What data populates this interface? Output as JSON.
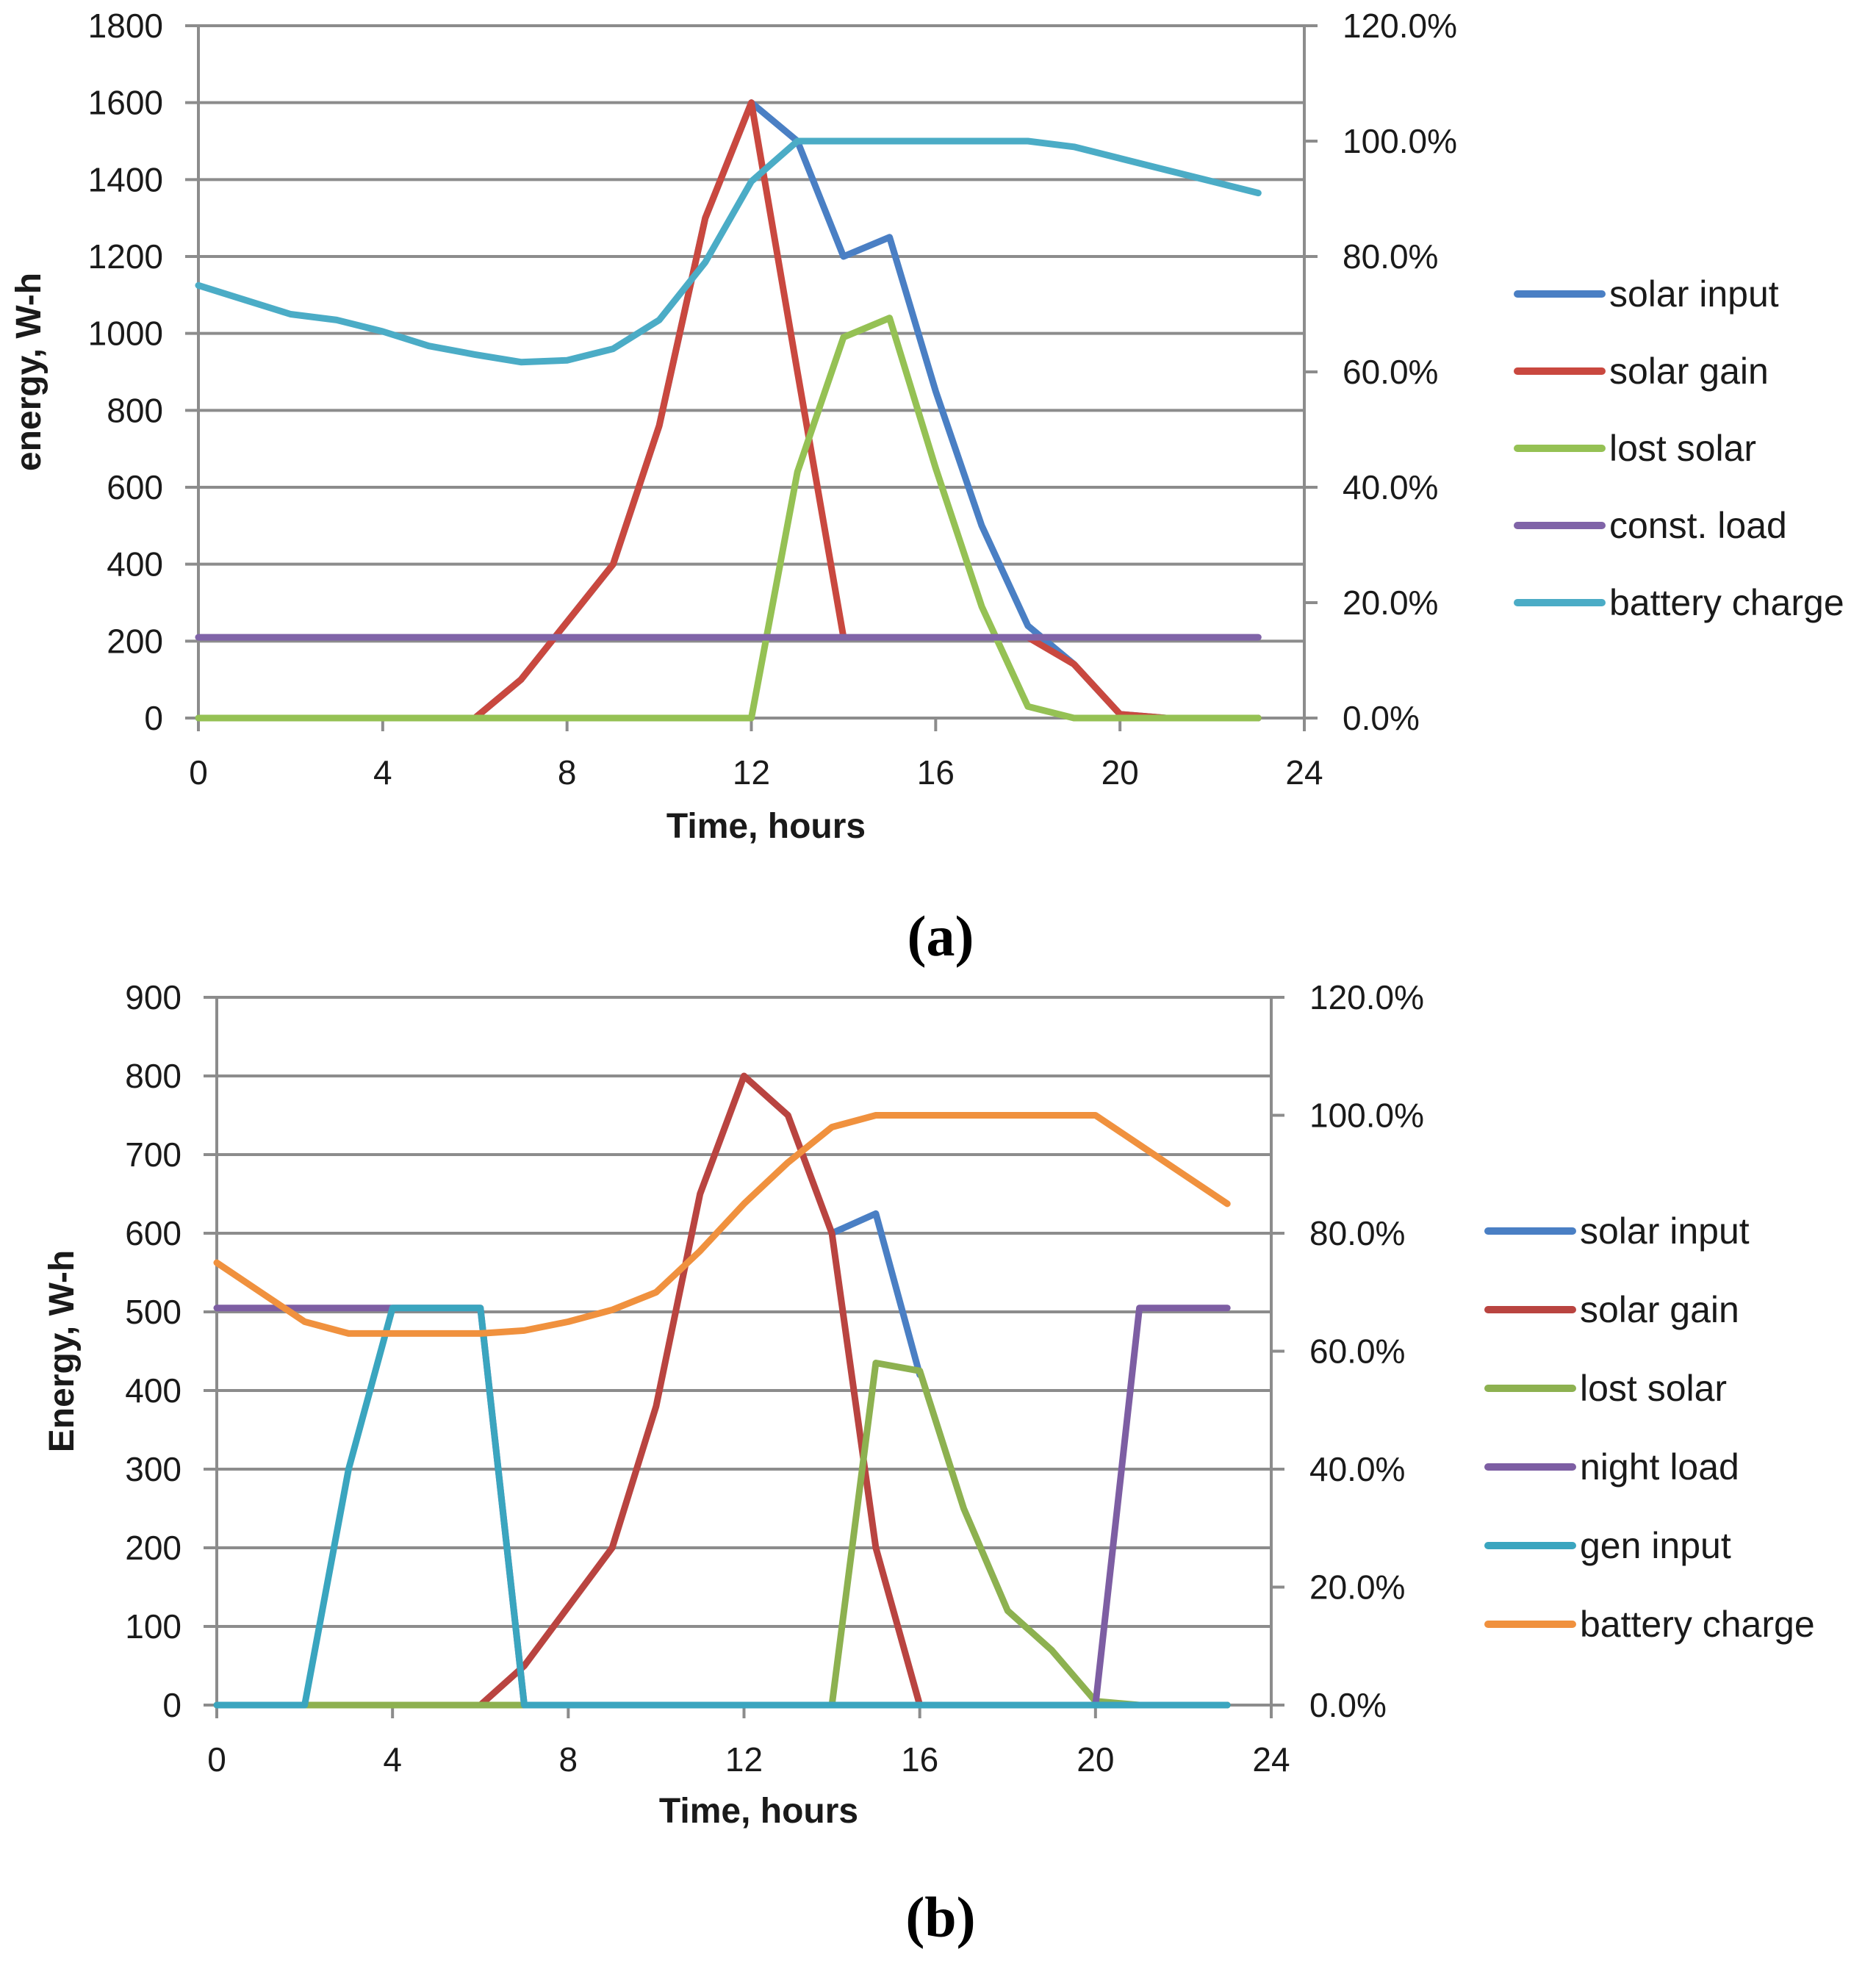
{
  "chart_data": [
    {
      "type": "line",
      "panel_label": "(a)",
      "xlabel": "Time, hours",
      "ylabel": "energy, W-h",
      "xlim": [
        0,
        24
      ],
      "ylim": [
        0,
        1800
      ],
      "y2lim": [
        0,
        1.2
      ],
      "x_ticks": [
        "0",
        "4",
        "8",
        "12",
        "16",
        "20",
        "24"
      ],
      "y_ticks": [
        "0",
        "200",
        "400",
        "600",
        "800",
        "1000",
        "1200",
        "1400",
        "1600",
        "1800"
      ],
      "y2_ticks": [
        "0.0%",
        "20.0%",
        "40.0%",
        "60.0%",
        "80.0%",
        "100.0%",
        "120.0%"
      ],
      "grid": true,
      "legend_position": "right",
      "series": [
        {
          "name": "solar input",
          "axis": "left",
          "color": "#4a7fc4",
          "x": [
            0,
            1,
            2,
            3,
            4,
            5,
            6,
            7,
            8,
            9,
            10,
            11,
            12,
            13,
            14,
            15,
            16,
            17,
            18,
            19,
            20,
            21,
            22,
            23
          ],
          "y": [
            0,
            0,
            0,
            0,
            0,
            0,
            0,
            100,
            250,
            400,
            760,
            1300,
            1600,
            1500,
            1200,
            1250,
            850,
            500,
            240,
            140,
            10,
            0,
            0,
            0
          ]
        },
        {
          "name": "solar gain",
          "axis": "left",
          "color": "#c9483f",
          "x": [
            6,
            7,
            8,
            9,
            10,
            11,
            12,
            13,
            14
          ],
          "y": [
            0,
            100,
            250,
            400,
            760,
            1300,
            1600,
            900,
            210
          ]
        },
        {
          "name": "solar gain",
          "axis": "left",
          "color": "#c9483f",
          "x": [
            18,
            19,
            20,
            21,
            22,
            23
          ],
          "y": [
            210,
            140,
            10,
            0,
            0,
            0
          ]
        },
        {
          "name": "lost solar",
          "axis": "left",
          "color": "#95c154",
          "x": [
            0,
            1,
            2,
            3,
            4,
            5,
            6,
            7,
            8,
            9,
            10,
            11,
            12,
            13,
            14,
            15,
            16,
            17,
            18,
            19,
            20,
            21,
            22,
            23
          ],
          "y": [
            0,
            0,
            0,
            0,
            0,
            0,
            0,
            0,
            0,
            0,
            0,
            0,
            0,
            640,
            990,
            1040,
            650,
            290,
            30,
            0,
            0,
            0,
            0,
            0
          ]
        },
        {
          "name": "const. load",
          "axis": "left",
          "color": "#8064a8",
          "x": [
            0,
            23
          ],
          "y": [
            210,
            210
          ]
        },
        {
          "name": "battery charge",
          "axis": "right",
          "color": "#4bacc6",
          "x": [
            0,
            1,
            2,
            3,
            4,
            5,
            6,
            7,
            8,
            9,
            10,
            11,
            12,
            13,
            14,
            15,
            16,
            17,
            18,
            19,
            20,
            21,
            22,
            23
          ],
          "y": [
            0.75,
            0.725,
            0.7,
            0.69,
            0.67,
            0.645,
            0.63,
            0.617,
            0.62,
            0.64,
            0.69,
            0.79,
            0.93,
            1.0,
            1.0,
            1.0,
            1.0,
            1.0,
            1.0,
            0.99,
            0.97,
            0.95,
            0.93,
            0.91
          ]
        }
      ],
      "legend": [
        "solar input",
        "solar gain",
        "lost solar",
        "const. load",
        "battery charge"
      ],
      "legend_colors": [
        "#4a7fc4",
        "#c9483f",
        "#95c154",
        "#8064a8",
        "#4bacc6"
      ]
    },
    {
      "type": "line",
      "panel_label": "(b)",
      "xlabel": "Time, hours",
      "ylabel": "Energy, W-h",
      "xlim": [
        0,
        24
      ],
      "ylim": [
        0,
        900
      ],
      "y2lim": [
        0,
        1.2
      ],
      "x_ticks": [
        "0",
        "4",
        "8",
        "12",
        "16",
        "20",
        "24"
      ],
      "y_ticks": [
        "0",
        "100",
        "200",
        "300",
        "400",
        "500",
        "600",
        "700",
        "800",
        "900"
      ],
      "y2_ticks": [
        "0.0%",
        "20.0%",
        "40.0%",
        "60.0%",
        "80.0%",
        "100.0%",
        "120.0%"
      ],
      "grid": true,
      "legend_position": "right",
      "series": [
        {
          "name": "solar input",
          "axis": "left",
          "color": "#4a7fc4",
          "x": [
            14,
            15,
            16
          ],
          "y": [
            600,
            625,
            420
          ]
        },
        {
          "name": "solar gain",
          "axis": "left",
          "color": "#b94440",
          "x": [
            0,
            1,
            2,
            3,
            4,
            5,
            6,
            7,
            8,
            9,
            10,
            11,
            12,
            13,
            14,
            15,
            16,
            17,
            18,
            19,
            20,
            21,
            22,
            23
          ],
          "y": [
            0,
            0,
            0,
            0,
            0,
            0,
            0,
            50,
            125,
            200,
            380,
            650,
            800,
            750,
            600,
            200,
            0,
            0,
            0,
            0,
            0,
            0,
            0,
            0
          ]
        },
        {
          "name": "lost solar",
          "axis": "left",
          "color": "#8db150",
          "x": [
            0,
            1,
            2,
            3,
            4,
            5,
            6,
            7,
            8,
            9,
            10,
            11,
            12,
            13,
            14,
            15,
            16,
            17,
            18,
            19,
            20,
            21,
            22,
            23
          ],
          "y": [
            0,
            0,
            0,
            0,
            0,
            0,
            0,
            0,
            0,
            0,
            0,
            0,
            0,
            0,
            0,
            435,
            425,
            250,
            120,
            70,
            5,
            0,
            0,
            0
          ]
        },
        {
          "name": "night load",
          "axis": "left",
          "color": "#7d5ea3",
          "x": [
            0,
            1,
            2,
            3,
            4,
            5,
            6,
            7,
            8,
            9,
            10,
            11,
            12,
            13,
            14,
            15,
            16,
            17,
            18,
            19,
            20,
            21,
            22,
            23
          ],
          "y": [
            505,
            505,
            505,
            505,
            505,
            505,
            505,
            0,
            0,
            0,
            0,
            0,
            0,
            0,
            0,
            0,
            0,
            0,
            0,
            0,
            0,
            505,
            505,
            505
          ]
        },
        {
          "name": "gen input",
          "axis": "left",
          "color": "#3aa5bf",
          "x": [
            0,
            1,
            2,
            3,
            4,
            5,
            6,
            7,
            8,
            9,
            10,
            11,
            12,
            13,
            14,
            15,
            16,
            17,
            18,
            19,
            20,
            21,
            22,
            23
          ],
          "y": [
            0,
            0,
            0,
            300,
            505,
            505,
            505,
            0,
            0,
            0,
            0,
            0,
            0,
            0,
            0,
            0,
            0,
            0,
            0,
            0,
            0,
            0,
            0,
            0
          ]
        },
        {
          "name": "battery charge",
          "axis": "right",
          "color": "#f0913e",
          "x": [
            0,
            1,
            2,
            3,
            4,
            5,
            6,
            7,
            8,
            9,
            10,
            11,
            12,
            13,
            14,
            15,
            16,
            17,
            18,
            19,
            20,
            21,
            22,
            23
          ],
          "y": [
            0.75,
            0.7,
            0.65,
            0.63,
            0.63,
            0.63,
            0.63,
            0.635,
            0.65,
            0.67,
            0.7,
            0.77,
            0.85,
            0.92,
            0.98,
            1.0,
            1.0,
            1.0,
            1.0,
            1.0,
            1.0,
            0.95,
            0.9,
            0.85
          ]
        }
      ],
      "legend": [
        "solar input",
        "solar gain",
        "lost solar",
        "night load",
        "gen input",
        "battery charge"
      ],
      "legend_colors": [
        "#4a7fc4",
        "#b94440",
        "#8db150",
        "#7d5ea3",
        "#3aa5bf",
        "#f0913e"
      ]
    }
  ]
}
